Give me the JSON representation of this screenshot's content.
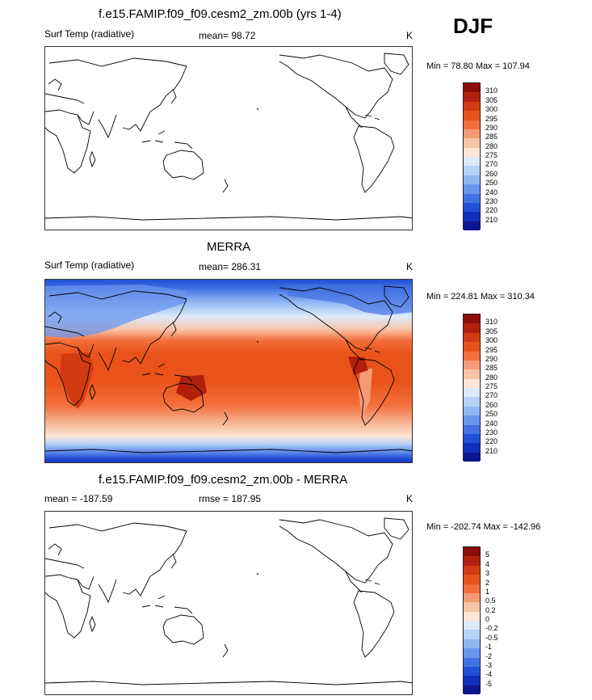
{
  "season": "DJF",
  "panels": [
    {
      "title": "f.e15.FAMIP.f09_f09.cesm2_zm.00b (yrs 1-4)",
      "left_label": "Surf Temp (radiative)",
      "center_label": "mean=  98.72",
      "units": "K",
      "minmax": "Min =  78.80 Max = 107.94",
      "filled": false
    },
    {
      "title": "MERRA",
      "left_label": "Surf Temp (radiative)",
      "center_label": "mean= 286.31",
      "units": "K",
      "minmax": "Min = 224.81 Max = 310.34",
      "filled": true
    },
    {
      "title": "f.e15.FAMIP.f09_f09.cesm2_zm.00b - MERRA",
      "left_label": "mean = -187.59",
      "center_label": "rmse = 187.95",
      "units": "K",
      "minmax": "Min = -202.74 Max = -142.96",
      "filled": false
    }
  ],
  "colorbar_abs": {
    "levels": [
      "310",
      "305",
      "300",
      "295",
      "290",
      "285",
      "280",
      "275",
      "270",
      "260",
      "250",
      "240",
      "230",
      "220",
      "210"
    ],
    "colors": [
      "#8c0d08",
      "#b0200d",
      "#d23b12",
      "#e9521a",
      "#f26f3c",
      "#f59a74",
      "#f8c4a7",
      "#fde6d6",
      "#dcebfb",
      "#b6d2f8",
      "#8fb6f3",
      "#6a95ec",
      "#4372e3",
      "#224fd6",
      "#0f2fb8",
      "#0a1591"
    ]
  },
  "colorbar_diff": {
    "levels": [
      "5",
      "4",
      "3",
      "2",
      "1",
      "0.5",
      "0.2",
      "0",
      "-0.2",
      "-0.5",
      "-1",
      "-2",
      "-3",
      "-4",
      "-5"
    ],
    "colors": [
      "#8c0d08",
      "#b0200d",
      "#d23b12",
      "#e9521a",
      "#f26f3c",
      "#f59a74",
      "#f8c4a7",
      "#fde6d6",
      "#dcebfb",
      "#b6d2f8",
      "#8fb6f3",
      "#6a95ec",
      "#4372e3",
      "#224fd6",
      "#0f2fb8",
      "#0a1591"
    ]
  },
  "chart_data": [
    {
      "type": "heatmap",
      "title": "f.e15.FAMIP.f09_f09.cesm2_zm.00b (yrs 1-4)",
      "variable": "Surf Temp (radiative)",
      "units": "K",
      "mean": 98.72,
      "min": 78.8,
      "max": 107.94,
      "contour_levels": [
        210,
        220,
        230,
        240,
        250,
        260,
        270,
        275,
        280,
        285,
        290,
        295,
        300,
        305,
        310
      ]
    },
    {
      "type": "heatmap",
      "title": "MERRA",
      "variable": "Surf Temp (radiative)",
      "units": "K",
      "mean": 286.31,
      "min": 224.81,
      "max": 310.34,
      "contour_levels": [
        210,
        220,
        230,
        240,
        250,
        260,
        270,
        275,
        280,
        285,
        290,
        295,
        300,
        305,
        310
      ]
    },
    {
      "type": "heatmap",
      "title": "f.e15.FAMIP.f09_f09.cesm2_zm.00b - MERRA",
      "units": "K",
      "mean": -187.59,
      "rmse": 187.95,
      "min": -202.74,
      "max": -142.96,
      "contour_levels": [
        -5,
        -4,
        -3,
        -2,
        -1,
        -0.5,
        -0.2,
        0,
        0.2,
        0.5,
        1,
        2,
        3,
        4,
        5
      ]
    }
  ]
}
